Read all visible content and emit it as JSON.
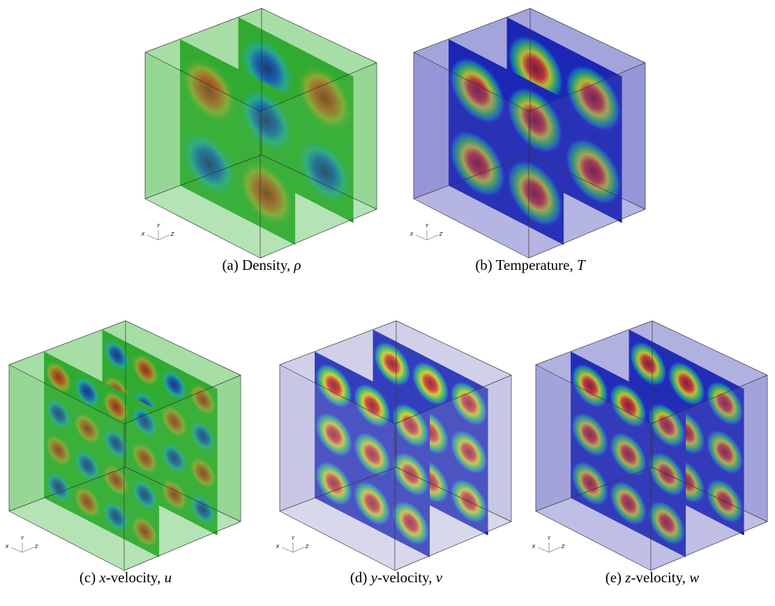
{
  "figure": {
    "panels": [
      {
        "axis_labels": [
          "X",
          "Y",
          "Z"
        ],
        "caption": [
          {
            "text": "(a) Density, "
          },
          {
            "text": "ρ",
            "italic": true
          }
        ]
      },
      {
        "axis_labels": [
          "X",
          "Y",
          "Z"
        ],
        "caption": [
          {
            "text": "(b) Temperature, "
          },
          {
            "text": "T",
            "italic": true
          }
        ]
      },
      {
        "axis_labels": [
          "X",
          "Y",
          "Z"
        ],
        "caption": [
          {
            "text": "(c) "
          },
          {
            "text": "x",
            "italic": true
          },
          {
            "text": "-velocity, "
          },
          {
            "text": "u",
            "italic": true
          }
        ]
      },
      {
        "axis_labels": [
          "X",
          "Y",
          "Z"
        ],
        "caption": [
          {
            "text": "(d) "
          },
          {
            "text": "y",
            "italic": true
          },
          {
            "text": "-velocity, "
          },
          {
            "text": "v",
            "italic": true
          }
        ]
      },
      {
        "axis_labels": [
          "X",
          "Y",
          "Z"
        ],
        "caption": [
          {
            "text": "(e) "
          },
          {
            "text": "z",
            "italic": true
          },
          {
            "text": "-velocity, "
          },
          {
            "text": "w",
            "italic": true
          }
        ]
      }
    ]
  }
}
